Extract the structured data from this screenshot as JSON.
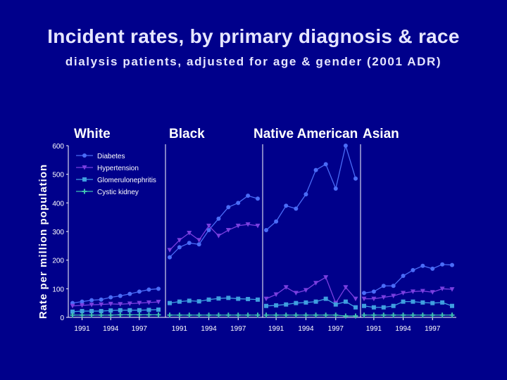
{
  "slide": {
    "title": "Incident rates, by primary diagnosis & race",
    "subtitle": "dialysis patients, adjusted for age & gender (2001 ADR)"
  },
  "chart_data": {
    "type": "line",
    "ylabel": "Rate per million population",
    "ylim": [
      0,
      600
    ],
    "yticks": [
      0,
      100,
      200,
      300,
      400,
      500,
      600
    ],
    "x": [
      1990,
      1991,
      1992,
      1993,
      1994,
      1995,
      1996,
      1997,
      1998,
      1999
    ],
    "xtick_labels": [
      "1991",
      "1994",
      "1997"
    ],
    "xtick_values": [
      1991,
      1994,
      1997
    ],
    "legend": [
      "Diabetes",
      "Hypertension",
      "Glomerulonephritis",
      "Cystic kidney"
    ],
    "series_colors": {
      "Diabetes": "#4a6cf7",
      "Hypertension": "#7a3fe0",
      "Glomerulonephritis": "#3f9fe0",
      "Cystic kidney": "#3fc0b0"
    },
    "panels": [
      {
        "name": "White",
        "series": [
          {
            "name": "Diabetes",
            "values": [
              50,
              55,
              60,
              62,
              70,
              75,
              82,
              90,
              97,
              100
            ]
          },
          {
            "name": "Hypertension",
            "values": [
              40,
              42,
              44,
              45,
              47,
              46,
              48,
              50,
              52,
              54
            ]
          },
          {
            "name": "Glomerulonephritis",
            "values": [
              20,
              22,
              22,
              22,
              24,
              25,
              25,
              25,
              26,
              27
            ]
          },
          {
            "name": "Cystic kidney",
            "values": [
              8,
              8,
              8,
              8,
              8,
              9,
              9,
              9,
              9,
              9
            ]
          }
        ]
      },
      {
        "name": "Black",
        "series": [
          {
            "name": "Diabetes",
            "values": [
              210,
              245,
              260,
              255,
              305,
              345,
              385,
              400,
              425,
              415
            ]
          },
          {
            "name": "Hypertension",
            "values": [
              235,
              270,
              295,
              270,
              320,
              285,
              305,
              320,
              325,
              320
            ]
          },
          {
            "name": "Glomerulonephritis",
            "values": [
              50,
              55,
              58,
              56,
              62,
              66,
              68,
              65,
              64,
              62
            ]
          },
          {
            "name": "Cystic kidney",
            "values": [
              8,
              8,
              8,
              8,
              8,
              8,
              8,
              8,
              8,
              8
            ]
          }
        ]
      },
      {
        "name": "Native American",
        "series": [
          {
            "name": "Diabetes",
            "values": [
              305,
              335,
              390,
              380,
              430,
              515,
              535,
              450,
              600,
              485
            ]
          },
          {
            "name": "Hypertension",
            "values": [
              65,
              80,
              105,
              85,
              95,
              120,
              140,
              50,
              105,
              65
            ]
          },
          {
            "name": "Glomerulonephritis",
            "values": [
              40,
              42,
              45,
              50,
              52,
              55,
              65,
              45,
              55,
              35
            ]
          },
          {
            "name": "Cystic kidney",
            "values": [
              8,
              8,
              8,
              8,
              8,
              8,
              8,
              8,
              5,
              5
            ]
          }
        ]
      },
      {
        "name": "Asian",
        "series": [
          {
            "name": "Diabetes",
            "values": [
              85,
              90,
              110,
              110,
              145,
              165,
              180,
              170,
              185,
              183
            ]
          },
          {
            "name": "Hypertension",
            "values": [
              65,
              65,
              70,
              75,
              85,
              90,
              92,
              88,
              100,
              98
            ]
          },
          {
            "name": "Glomerulonephritis",
            "values": [
              40,
              35,
              35,
              40,
              55,
              55,
              52,
              50,
              52,
              40
            ]
          },
          {
            "name": "Cystic kidney",
            "values": [
              8,
              8,
              8,
              8,
              8,
              8,
              8,
              8,
              8,
              8
            ]
          }
        ]
      }
    ]
  }
}
